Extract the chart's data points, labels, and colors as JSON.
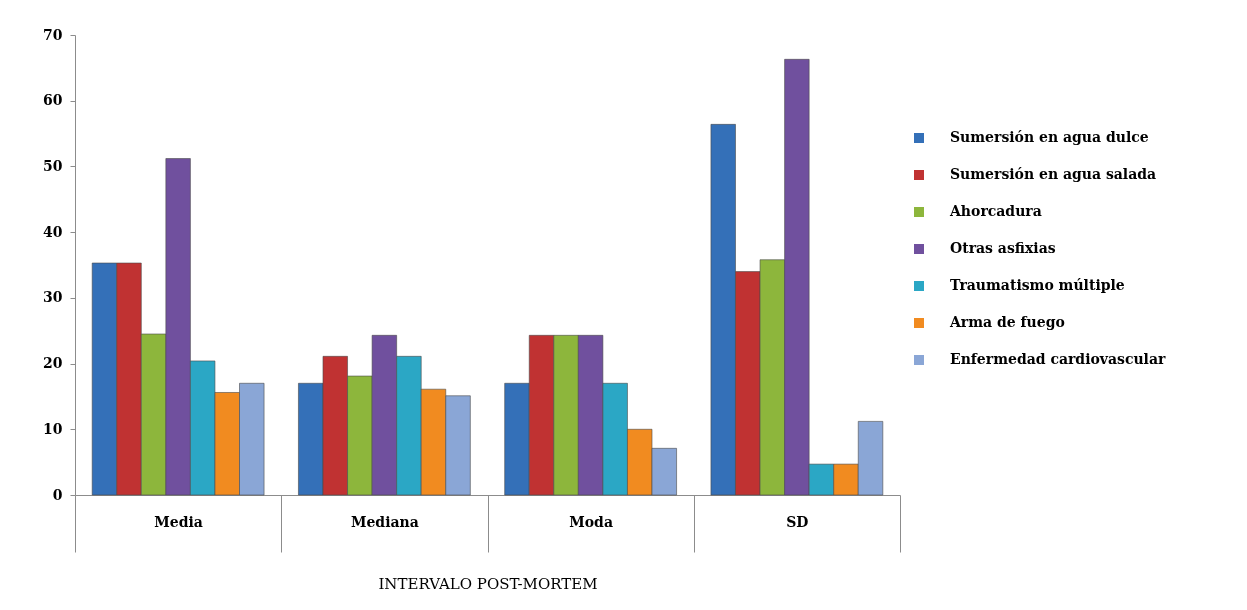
{
  "chart_data": {
    "type": "bar",
    "xlabel": "INTERVALO POST-MORTEM",
    "categories": [
      "Media",
      "Mediana",
      "Moda",
      "SD"
    ],
    "series": [
      {
        "name": "Sumersión en agua dulce",
        "color": "#3470b8",
        "values": [
          35.3,
          17.0,
          17.0,
          56.4
        ]
      },
      {
        "name": "Sumersión en agua salada",
        "color": "#c03232",
        "values": [
          35.3,
          21.1,
          24.3,
          34.0
        ]
      },
      {
        "name": "Ahorcadura",
        "color": "#8db63c",
        "values": [
          24.5,
          18.1,
          24.3,
          35.8
        ]
      },
      {
        "name": "Otras asfixias",
        "color": "#70509e",
        "values": [
          51.2,
          24.3,
          24.3,
          66.3
        ]
      },
      {
        "name": "Traumatismo múltiple",
        "color": "#2ba7c5",
        "values": [
          20.4,
          21.1,
          17.0,
          4.7
        ]
      },
      {
        "name": "Arma de fuego",
        "color": "#f18b20",
        "values": [
          15.6,
          16.1,
          10.0,
          4.7
        ]
      },
      {
        "name": "Enfermedad cardiovascular",
        "color": "#8aa6d6",
        "values": [
          17.0,
          15.1,
          7.1,
          11.2
        ]
      }
    ],
    "ylim": [
      0,
      70
    ],
    "yticks": [
      0,
      10,
      20,
      30,
      40,
      50,
      60,
      70
    ],
    "legend": "right"
  }
}
